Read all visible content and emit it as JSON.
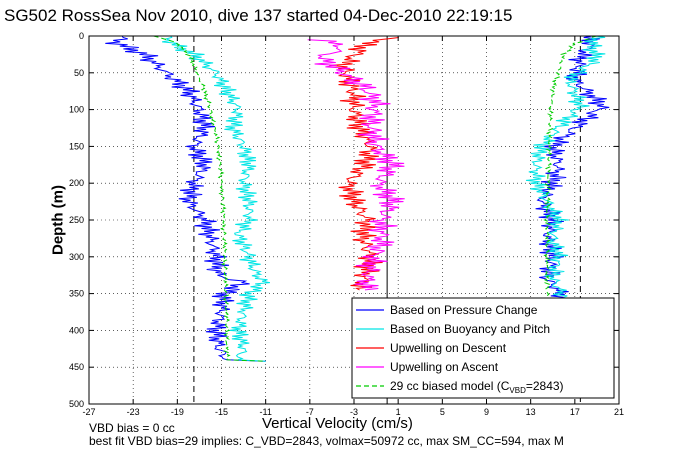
{
  "chart_data": {
    "type": "line",
    "title": "SG502 RossSea Nov 2010, dive 137 started 04-Dec-2010 22:19:15",
    "xlabel": "Vertical Velocity (cm/s)",
    "ylabel": "Depth (m)",
    "xlim": [
      -27,
      21
    ],
    "ylim": [
      500,
      0
    ],
    "y_reversed": true,
    "grid": true,
    "legend_position": "lower-right",
    "x_ticks": [
      -27,
      -23,
      -19,
      -15,
      -11,
      -7,
      -3,
      1,
      5,
      9,
      13,
      17,
      21
    ],
    "y_ticks": [
      0,
      50,
      100,
      150,
      200,
      250,
      300,
      350,
      400,
      450,
      500
    ],
    "vertical_lines": [
      {
        "x": -17.5,
        "style": "dashed",
        "color": "#000000"
      },
      {
        "x": 0.0,
        "style": "solid",
        "color": "#000000"
      },
      {
        "x": 17.5,
        "style": "dashed",
        "color": "#000000"
      }
    ],
    "series": [
      {
        "name": "Based on Pressure Change",
        "color": "#0000ff",
        "style": "solid",
        "segments": [
          {
            "depth": [
              0,
              10,
              25,
              50,
              75,
              100,
              125,
              150,
              175,
              200,
              225,
              250,
              275,
              300,
              325,
              335,
              350,
              375,
              400,
              425,
              440,
              442
            ],
            "x": [
              -24,
              -24.5,
              -22,
              -20,
              -18,
              -17,
              -16.5,
              -17.5,
              -16.5,
              -17.5,
              -18,
              -16.5,
              -16,
              -15.5,
              -15.3,
              -13,
              -14.8,
              -15,
              -15.5,
              -15.2,
              -14.5,
              -11
            ]
          },
          {
            "depth": [
              0,
              10,
              30,
              60,
              95,
              125,
              150,
              175,
              200,
              225,
              250,
              275,
              300,
              330,
              355
            ],
            "x": [
              18,
              18.5,
              17.5,
              17,
              19.5,
              17,
              15,
              15.5,
              15,
              14,
              15,
              14.5,
              15,
              14.5,
              16
            ]
          }
        ]
      },
      {
        "name": "Based on Buoyancy and Pitch",
        "color": "#00e5e5",
        "style": "solid",
        "segments": [
          {
            "depth": [
              0,
              10,
              25,
              50,
              75,
              100,
              125,
              150,
              175,
              200,
              225,
              250,
              270,
              290,
              320,
              335,
              350,
              375,
              400,
              425,
              440,
              442
            ],
            "x": [
              -20,
              -19.5,
              -17.5,
              -15.5,
              -14.5,
              -13.5,
              -14,
              -13,
              -12.5,
              -13,
              -12.5,
              -12.5,
              -13.5,
              -12.8,
              -12,
              -11.2,
              -12.5,
              -13,
              -13.5,
              -13,
              -13.5,
              -11
            ]
          },
          {
            "depth": [
              0,
              15,
              30,
              60,
              95,
              125,
              150,
              175,
              200,
              225,
              250,
              275,
              300,
              330,
              355
            ],
            "x": [
              19,
              18.5,
              19,
              16.5,
              17.5,
              15.5,
              14,
              13.5,
              13.5,
              14.5,
              15.5,
              15,
              15.5,
              15,
              16
            ]
          }
        ]
      },
      {
        "name": "Upwelling on Descent",
        "color": "#ff0000",
        "style": "solid",
        "segments": [
          {
            "depth": [
              2,
              10,
              20,
              40,
              60,
              80,
              100,
              125,
              150,
              175,
              200,
              225,
              250,
              275,
              300,
              325,
              345
            ],
            "x": [
              1,
              -2,
              -2.5,
              -4,
              -3.5,
              -3,
              -3,
              -2.5,
              -1.5,
              -2,
              -3.5,
              -3,
              -1.8,
              -2.2,
              -1.5,
              -2,
              -2.5
            ]
          }
        ]
      },
      {
        "name": "Upwelling on Ascent",
        "color": "#ff00ff",
        "style": "solid",
        "segments": [
          {
            "depth": [
              5,
              15,
              30,
              50,
              70,
              90,
              120,
              150,
              175,
              200,
              225,
              250,
              280,
              310,
              345
            ],
            "x": [
              -6,
              -4,
              -6,
              -4,
              -2,
              -1,
              -1.5,
              -1,
              0.5,
              -0.8,
              0.5,
              -0.5,
              -0.5,
              -1.5,
              -2
            ]
          }
        ]
      },
      {
        "name": "29 cc biased model (C_VBD=2843)",
        "legend_label_text": "29 cc biased model (C",
        "legend_label_sub": "VBD",
        "legend_label_tail": "=2843)",
        "color": "#00cc00",
        "style": "dashed",
        "segments": [
          {
            "depth": [
              0,
              10,
              25,
              50,
              75,
              100,
              150,
              200,
              250,
              300,
              350,
              400,
              440,
              442
            ],
            "x": [
              -21,
              -19,
              -18,
              -17.2,
              -16.5,
              -16,
              -15.3,
              -15,
              -14.8,
              -14.7,
              -14.6,
              -14.5,
              -14.5,
              -11
            ]
          },
          {
            "depth": [
              0,
              10,
              25,
              50,
              75,
              100,
              150,
              200,
              250,
              300,
              355
            ],
            "x": [
              19,
              17,
              16,
              15.5,
              15,
              14.8,
              14.7,
              14.6,
              14.5,
              14.5,
              14.5
            ]
          }
        ]
      }
    ]
  },
  "annotations": {
    "vbd_bias": "VBD bias = 0 cc",
    "best_fit": "best fit VBD bias=29 implies: C_VBD=2843, volmax=50972 cc, max SM_CC=594, max M"
  }
}
